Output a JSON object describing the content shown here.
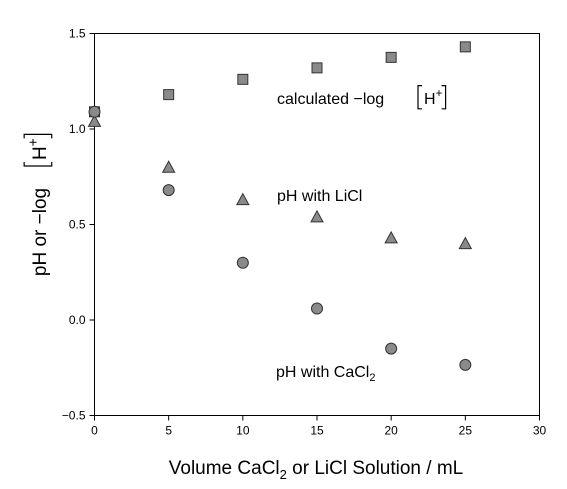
{
  "chart_data": {
    "type": "scatter",
    "xlabel": {
      "prefix": "Volume CaCl",
      "sub": "2",
      "suffix": " or LiCl Solution / mL"
    },
    "ylabel": {
      "prefix": "pH or −log",
      "ion": "H",
      "charge": "+"
    },
    "xlim": [
      0,
      30
    ],
    "ylim": [
      -0.5,
      1.5
    ],
    "x_ticks": [
      0,
      5,
      10,
      15,
      20,
      25,
      30
    ],
    "x_tick_labels": [
      "0",
      "5",
      "10",
      "15",
      "20",
      "25",
      "30"
    ],
    "y_ticks": [
      -0.5,
      0.0,
      0.5,
      1.0,
      1.5
    ],
    "y_tick_labels": [
      "−0.5",
      "0.0",
      "0.5",
      "1.0",
      "1.5"
    ],
    "series": [
      {
        "label": {
          "prefix": "calculated −log",
          "ion": "H",
          "charge": "+"
        },
        "marker": "square",
        "color": "#8a8a8a",
        "points": [
          {
            "x": 0,
            "y": 1.09
          },
          {
            "x": 5,
            "y": 1.18
          },
          {
            "x": 10,
            "y": 1.26
          },
          {
            "x": 15,
            "y": 1.32
          },
          {
            "x": 20,
            "y": 1.375
          },
          {
            "x": 25,
            "y": 1.43
          }
        ]
      },
      {
        "label": {
          "prefix": "pH with LiCl"
        },
        "marker": "triangle",
        "color": "#8a8a8a",
        "points": [
          {
            "x": 0,
            "y": 1.04
          },
          {
            "x": 5,
            "y": 0.8
          },
          {
            "x": 10,
            "y": 0.63
          },
          {
            "x": 15,
            "y": 0.54
          },
          {
            "x": 20,
            "y": 0.43
          },
          {
            "x": 25,
            "y": 0.4
          }
        ]
      },
      {
        "label": {
          "prefix": "pH with CaCl",
          "sub": "2"
        },
        "marker": "circle",
        "color": "#8a8a8a",
        "points": [
          {
            "x": 0,
            "y": 1.09
          },
          {
            "x": 5,
            "y": 0.68
          },
          {
            "x": 10,
            "y": 0.3
          },
          {
            "x": 15,
            "y": 0.06
          },
          {
            "x": 20,
            "y": -0.15
          },
          {
            "x": 25,
            "y": -0.235
          }
        ]
      }
    ]
  }
}
